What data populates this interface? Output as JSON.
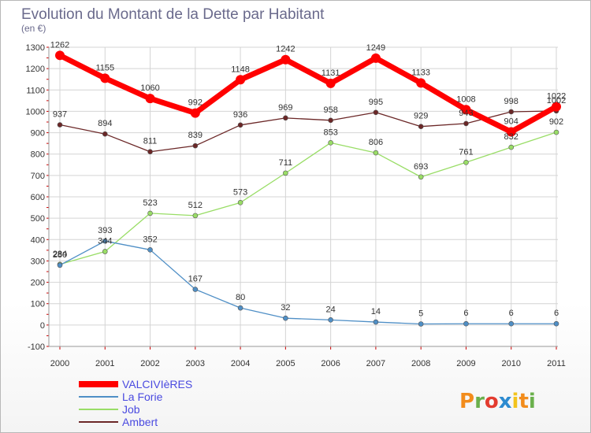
{
  "chart_data": {
    "type": "line",
    "title": "Evolution du Montant de la Dette par Habitant",
    "subtitle": "(en €)",
    "xlabel": "",
    "ylabel": "",
    "categories": [
      "2000",
      "2001",
      "2002",
      "2003",
      "2004",
      "2005",
      "2006",
      "2007",
      "2008",
      "2009",
      "2010",
      "2011"
    ],
    "ylim": [
      -100,
      1300
    ],
    "yticks": [
      -100,
      0,
      100,
      200,
      300,
      400,
      500,
      600,
      700,
      800,
      900,
      1000,
      1100,
      1200,
      1300
    ],
    "grid": true,
    "series": [
      {
        "name": "VALCIVIèRES",
        "color": "#ff0000",
        "values": [
          1262,
          1155,
          1060,
          992,
          1148,
          1242,
          1131,
          1249,
          1133,
          1008,
          904,
          1022
        ]
      },
      {
        "name": "La Forie",
        "color": "#4f8fc6",
        "values": [
          280,
          393,
          352,
          167,
          80,
          32,
          24,
          14,
          5,
          6,
          6,
          6
        ]
      },
      {
        "name": "Job",
        "color": "#99dd66",
        "values": [
          284,
          344,
          523,
          512,
          573,
          711,
          853,
          806,
          693,
          761,
          832,
          902
        ]
      },
      {
        "name": "Ambert",
        "color": "#6b2727",
        "values": [
          937,
          894,
          811,
          839,
          936,
          969,
          958,
          995,
          929,
          943,
          998,
          1002
        ]
      }
    ]
  },
  "branding": {
    "logo_text": "Proxiti",
    "logo_colors": [
      "#f28c1c",
      "#6ab04c",
      "#e33b2f",
      "#2d8bd0",
      "#f2c31c"
    ]
  }
}
